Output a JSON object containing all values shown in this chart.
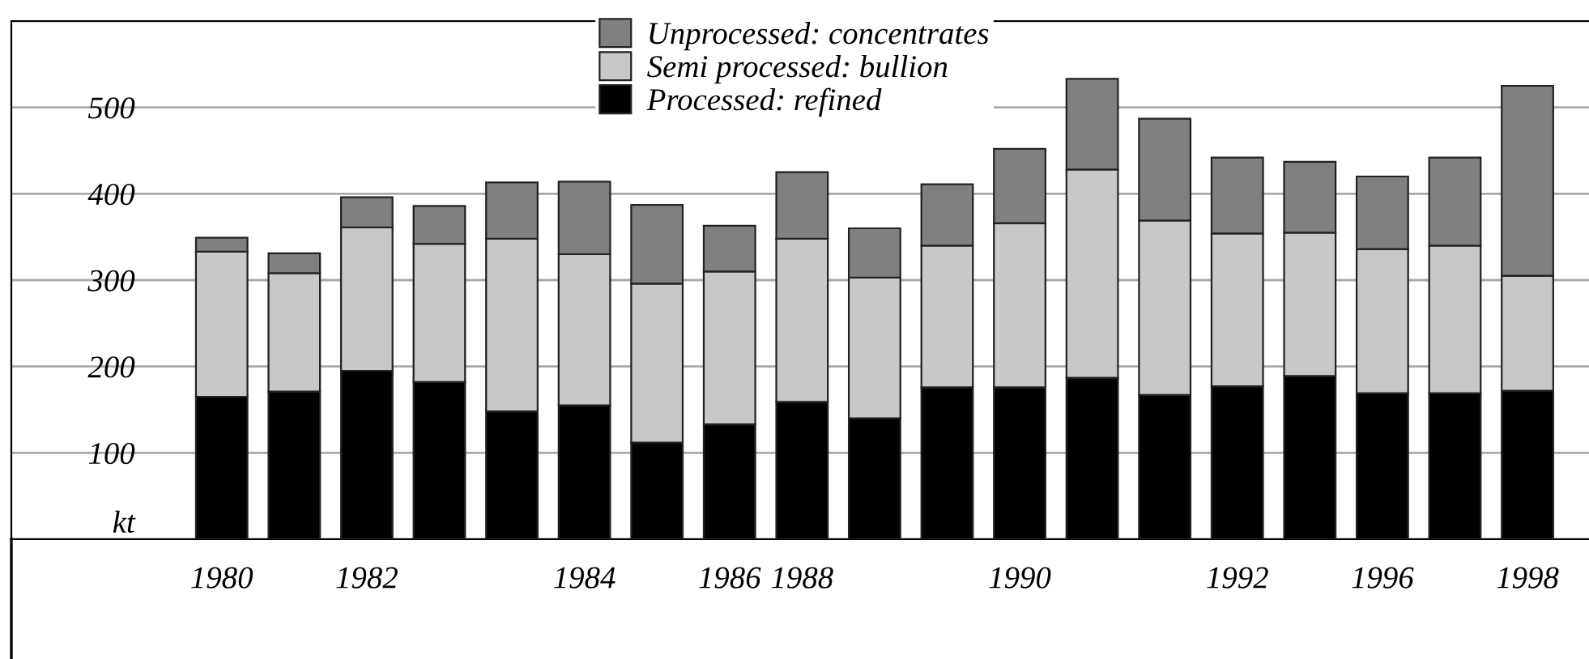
{
  "chart_data": {
    "type": "bar",
    "stacked": true,
    "categories": [
      "1980",
      null,
      "1982",
      null,
      null,
      "1984",
      null,
      "1986",
      "1988",
      null,
      null,
      "1990",
      null,
      null,
      "1992",
      null,
      "1996",
      null,
      "1998"
    ],
    "series": [
      {
        "name": "Processed: refined",
        "color": "#000000",
        "values": [
          165,
          171,
          195,
          182,
          148,
          155,
          112,
          133,
          159,
          140,
          176,
          176,
          187,
          167,
          177,
          189,
          169,
          169,
          172
        ]
      },
      {
        "name": "Semi processed: bullion",
        "color": "#c8c8c8",
        "values": [
          168,
          137,
          166,
          160,
          200,
          175,
          184,
          177,
          189,
          163,
          164,
          190,
          241,
          202,
          177,
          166,
          167,
          171,
          133
        ]
      },
      {
        "name": "Unprocessed: concentrates",
        "color": "#808080",
        "values": [
          16,
          23,
          35,
          44,
          65,
          84,
          91,
          53,
          77,
          57,
          71,
          86,
          105,
          118,
          88,
          82,
          84,
          102,
          220
        ]
      }
    ],
    "ylim": [
      0,
      600
    ],
    "yticks": [
      {
        "value": 0,
        "label": "kt"
      },
      100,
      200,
      300,
      400,
      500,
      {
        "value": 600,
        "label": null
      }
    ],
    "grid": "y",
    "legend": "top"
  }
}
